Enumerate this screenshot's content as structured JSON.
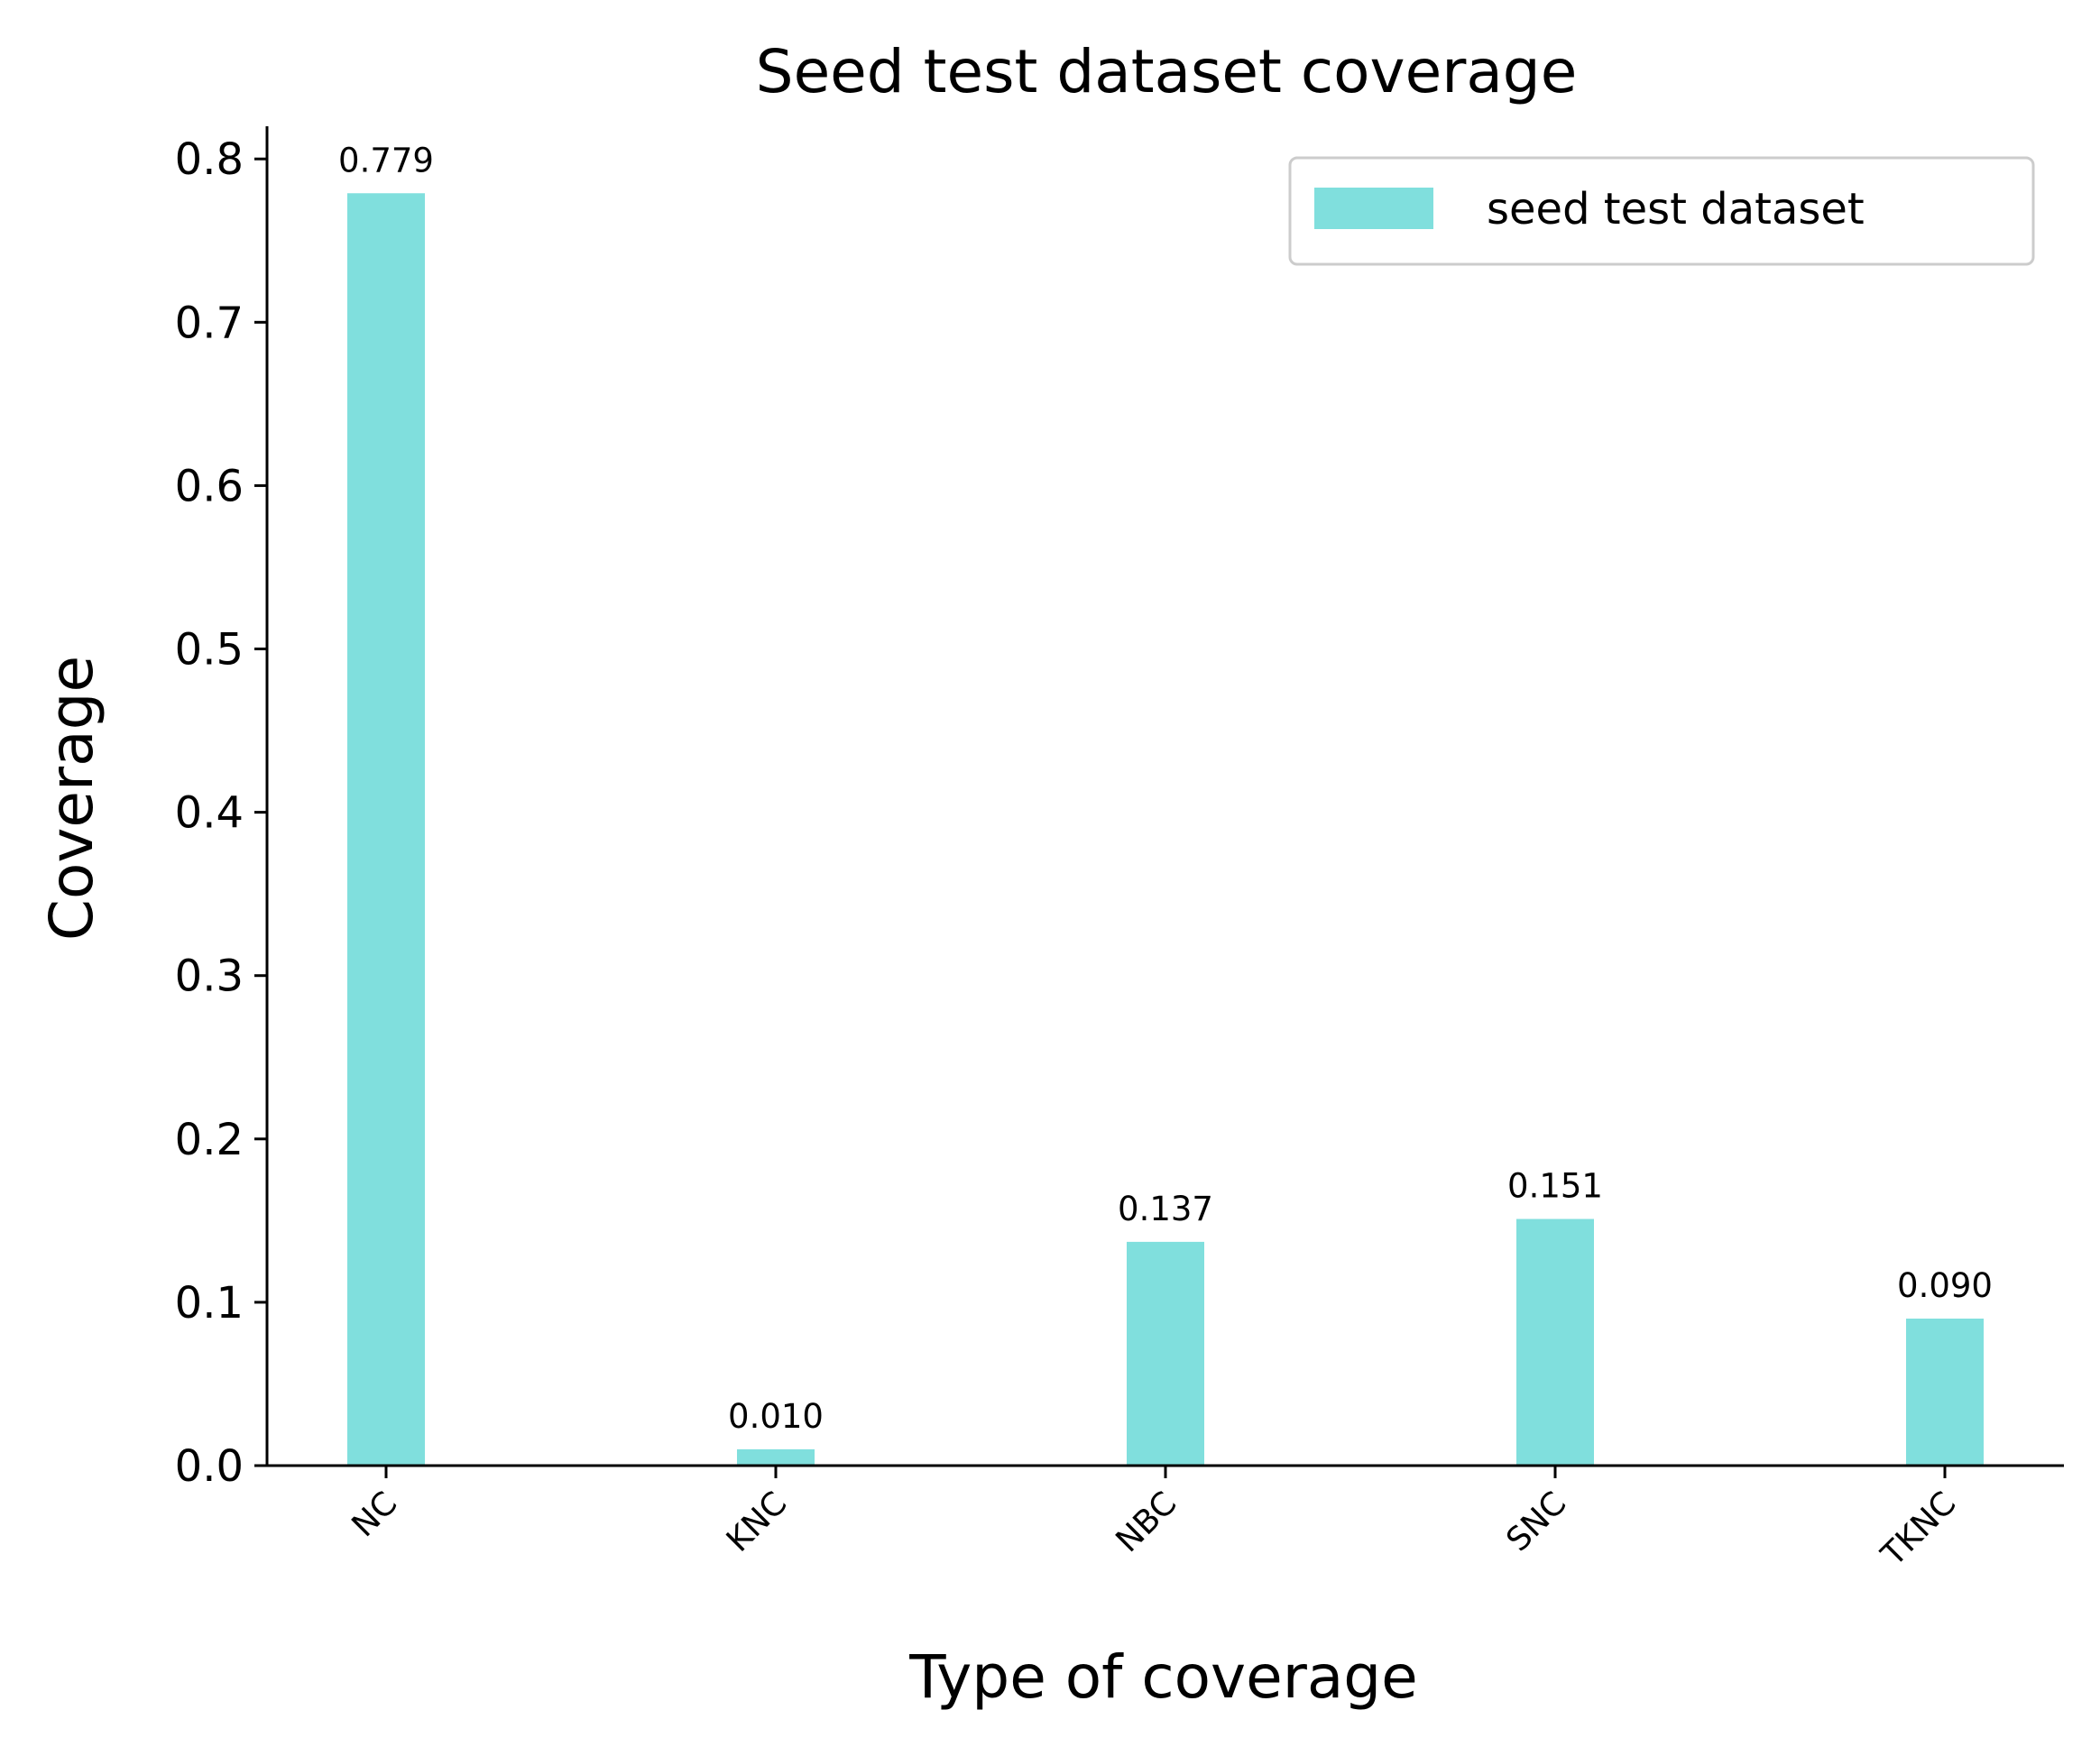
{
  "chart_data": {
    "type": "bar",
    "title": "Seed test dataset coverage",
    "xlabel": "Type of coverage",
    "ylabel": "Coverage",
    "categories": [
      "NC",
      "KNC",
      "NBC",
      "SNC",
      "TKNC"
    ],
    "series": [
      {
        "name": "seed test dataset",
        "values": [
          0.779,
          0.01,
          0.137,
          0.151,
          0.09
        ],
        "color": "#80DFDD"
      }
    ],
    "value_labels": [
      "0.779",
      "0.010",
      "0.137",
      "0.151",
      "0.090"
    ],
    "ylim": [
      0,
      0.82
    ],
    "yticks": [
      "0.0",
      "0.1",
      "0.2",
      "0.3",
      "0.4",
      "0.5",
      "0.6",
      "0.7",
      "0.8"
    ],
    "legend_position": "top-right",
    "grid": false
  }
}
